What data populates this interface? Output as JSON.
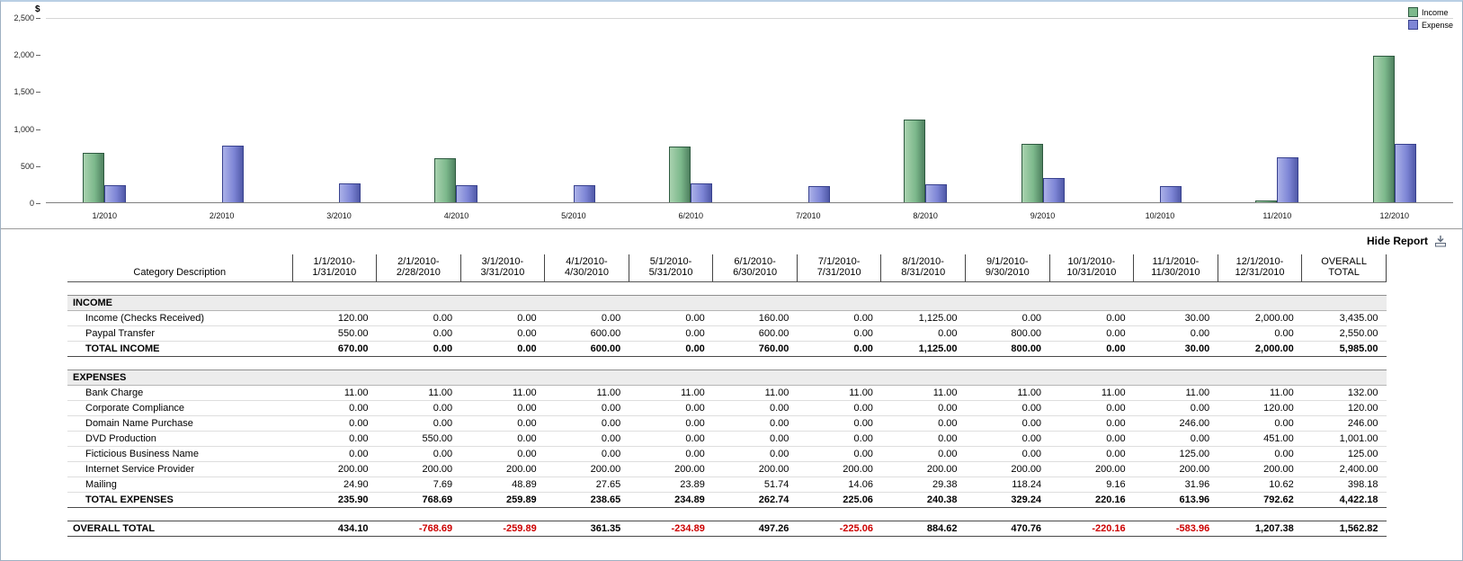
{
  "chart_data": {
    "type": "bar",
    "title": "",
    "ylabel": "$",
    "ylim": [
      0,
      2500
    ],
    "yticks": [
      "2,500",
      "2,000",
      "1,500",
      "1,000",
      "500",
      "0"
    ],
    "categories": [
      "1/2010",
      "2/2010",
      "3/2010",
      "4/2010",
      "5/2010",
      "6/2010",
      "7/2010",
      "8/2010",
      "9/2010",
      "10/2010",
      "11/2010",
      "12/2010"
    ],
    "series": [
      {
        "name": "Income",
        "color": "#7db98c",
        "color_light": "#a9d2af",
        "color_dark": "#4f8160",
        "border": "#2e5a40",
        "values": [
          670,
          0,
          0,
          600,
          0,
          760,
          0,
          1125,
          800,
          0,
          30,
          2000
        ]
      },
      {
        "name": "Expense",
        "color": "#7e86d6",
        "color_light": "#abb1e8",
        "color_dark": "#5059a8",
        "border": "#38418e",
        "values": [
          235.9,
          768.69,
          259.89,
          238.65,
          234.89,
          262.74,
          225.06,
          240.38,
          329.24,
          220.16,
          613.96,
          792.62
        ]
      }
    ],
    "grid": false,
    "legend_position": "top-right"
  },
  "report": {
    "hide_report_label": "Hide Report",
    "first_col_header": "Category Description",
    "negative_color": "#cc0000",
    "col_headers": [
      [
        "1/1/2010-",
        "1/31/2010"
      ],
      [
        "2/1/2010-",
        "2/28/2010"
      ],
      [
        "3/1/2010-",
        "3/31/2010"
      ],
      [
        "4/1/2010-",
        "4/30/2010"
      ],
      [
        "5/1/2010-",
        "5/31/2010"
      ],
      [
        "6/1/2010-",
        "6/30/2010"
      ],
      [
        "7/1/2010-",
        "7/31/2010"
      ],
      [
        "8/1/2010-",
        "8/31/2010"
      ],
      [
        "9/1/2010-",
        "9/30/2010"
      ],
      [
        "10/1/2010-",
        "10/31/2010"
      ],
      [
        "11/1/2010-",
        "11/30/2010"
      ],
      [
        "12/1/2010-",
        "12/31/2010"
      ],
      [
        "OVERALL",
        "TOTAL"
      ]
    ],
    "sections": [
      {
        "title": "INCOME",
        "rows": [
          {
            "label": "Income (Checks Received)",
            "values": [
              "120.00",
              "0.00",
              "0.00",
              "0.00",
              "0.00",
              "160.00",
              "0.00",
              "1,125.00",
              "0.00",
              "0.00",
              "30.00",
              "2,000.00",
              "3,435.00"
            ]
          },
          {
            "label": "Paypal Transfer",
            "values": [
              "550.00",
              "0.00",
              "0.00",
              "600.00",
              "0.00",
              "600.00",
              "0.00",
              "0.00",
              "800.00",
              "0.00",
              "0.00",
              "0.00",
              "2,550.00"
            ]
          }
        ],
        "total": {
          "label": "TOTAL INCOME",
          "values": [
            "670.00",
            "0.00",
            "0.00",
            "600.00",
            "0.00",
            "760.00",
            "0.00",
            "1,125.00",
            "800.00",
            "0.00",
            "30.00",
            "2,000.00",
            "5,985.00"
          ]
        }
      },
      {
        "title": "EXPENSES",
        "rows": [
          {
            "label": "Bank Charge",
            "values": [
              "11.00",
              "11.00",
              "11.00",
              "11.00",
              "11.00",
              "11.00",
              "11.00",
              "11.00",
              "11.00",
              "11.00",
              "11.00",
              "11.00",
              "132.00"
            ]
          },
          {
            "label": "Corporate Compliance",
            "values": [
              "0.00",
              "0.00",
              "0.00",
              "0.00",
              "0.00",
              "0.00",
              "0.00",
              "0.00",
              "0.00",
              "0.00",
              "0.00",
              "120.00",
              "120.00"
            ]
          },
          {
            "label": "Domain Name Purchase",
            "values": [
              "0.00",
              "0.00",
              "0.00",
              "0.00",
              "0.00",
              "0.00",
              "0.00",
              "0.00",
              "0.00",
              "0.00",
              "246.00",
              "0.00",
              "246.00"
            ]
          },
          {
            "label": "DVD Production",
            "values": [
              "0.00",
              "550.00",
              "0.00",
              "0.00",
              "0.00",
              "0.00",
              "0.00",
              "0.00",
              "0.00",
              "0.00",
              "0.00",
              "451.00",
              "1,001.00"
            ]
          },
          {
            "label": "Ficticious Business Name",
            "values": [
              "0.00",
              "0.00",
              "0.00",
              "0.00",
              "0.00",
              "0.00",
              "0.00",
              "0.00",
              "0.00",
              "0.00",
              "125.00",
              "0.00",
              "125.00"
            ]
          },
          {
            "label": "Internet Service Provider",
            "values": [
              "200.00",
              "200.00",
              "200.00",
              "200.00",
              "200.00",
              "200.00",
              "200.00",
              "200.00",
              "200.00",
              "200.00",
              "200.00",
              "200.00",
              "2,400.00"
            ]
          },
          {
            "label": "Mailing",
            "values": [
              "24.90",
              "7.69",
              "48.89",
              "27.65",
              "23.89",
              "51.74",
              "14.06",
              "29.38",
              "118.24",
              "9.16",
              "31.96",
              "10.62",
              "398.18"
            ]
          }
        ],
        "total": {
          "label": "TOTAL EXPENSES",
          "values": [
            "235.90",
            "768.69",
            "259.89",
            "238.65",
            "234.89",
            "262.74",
            "225.06",
            "240.38",
            "329.24",
            "220.16",
            "613.96",
            "792.62",
            "4,422.18"
          ]
        }
      }
    ],
    "overall": {
      "label": "OVERALL TOTAL",
      "values": [
        "434.10",
        "-768.69",
        "-259.89",
        "361.35",
        "-234.89",
        "497.26",
        "-225.06",
        "884.62",
        "470.76",
        "-220.16",
        "-583.96",
        "1,207.38",
        "1,562.82"
      ]
    }
  }
}
